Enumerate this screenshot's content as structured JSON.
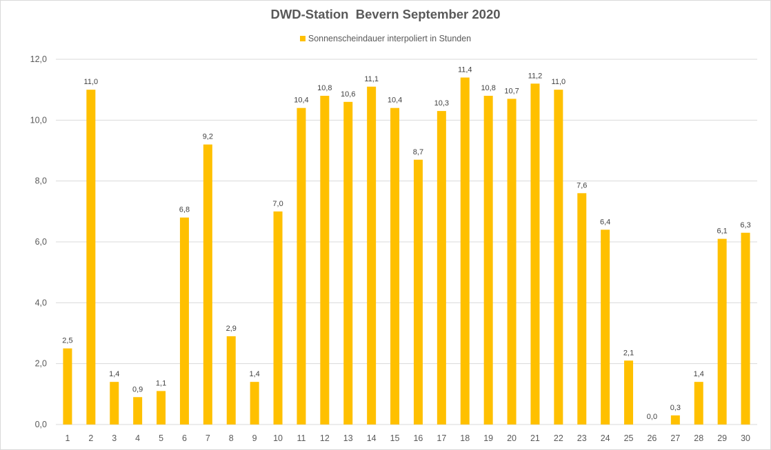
{
  "colors": {
    "bar": "#ffc000",
    "grid": "#d9d9d9",
    "axis_text": "#595959",
    "label_text": "#404040"
  },
  "chart_data": {
    "type": "bar",
    "title": "DWD-Station  Bevern September 2020",
    "categories": [
      "1",
      "2",
      "3",
      "4",
      "5",
      "6",
      "7",
      "8",
      "9",
      "10",
      "11",
      "12",
      "13",
      "14",
      "15",
      "16",
      "17",
      "18",
      "19",
      "20",
      "21",
      "22",
      "23",
      "24",
      "25",
      "26",
      "27",
      "28",
      "29",
      "30"
    ],
    "series": [
      {
        "name": "Sonnenscheindauer interpoliert in Stunden",
        "values": [
          2.5,
          11.0,
          1.4,
          0.9,
          1.1,
          6.8,
          9.2,
          2.9,
          1.4,
          7.0,
          10.4,
          10.8,
          10.6,
          11.1,
          10.4,
          8.7,
          10.3,
          11.4,
          10.8,
          10.7,
          11.2,
          11.0,
          7.6,
          6.4,
          2.1,
          0.0,
          0.3,
          1.4,
          6.1,
          6.3
        ],
        "labels": [
          "2,5",
          "11,0",
          "1,4",
          "0,9",
          "1,1",
          "6,8",
          "9,2",
          "2,9",
          "1,4",
          "7,0",
          "10,4",
          "10,8",
          "10,6",
          "11,1",
          "10,4",
          "8,7",
          "10,3",
          "11,4",
          "10,8",
          "10,7",
          "11,2",
          "11,0",
          "7,6",
          "6,4",
          "2,1",
          "0,0",
          "0,3",
          "1,4",
          "6,1",
          "6,3"
        ]
      }
    ],
    "yticks": [
      "0,0",
      "2,0",
      "4,0",
      "6,0",
      "8,0",
      "10,0",
      "12,0"
    ],
    "ylim": [
      0,
      12
    ],
    "grid": true,
    "legend": "top"
  }
}
